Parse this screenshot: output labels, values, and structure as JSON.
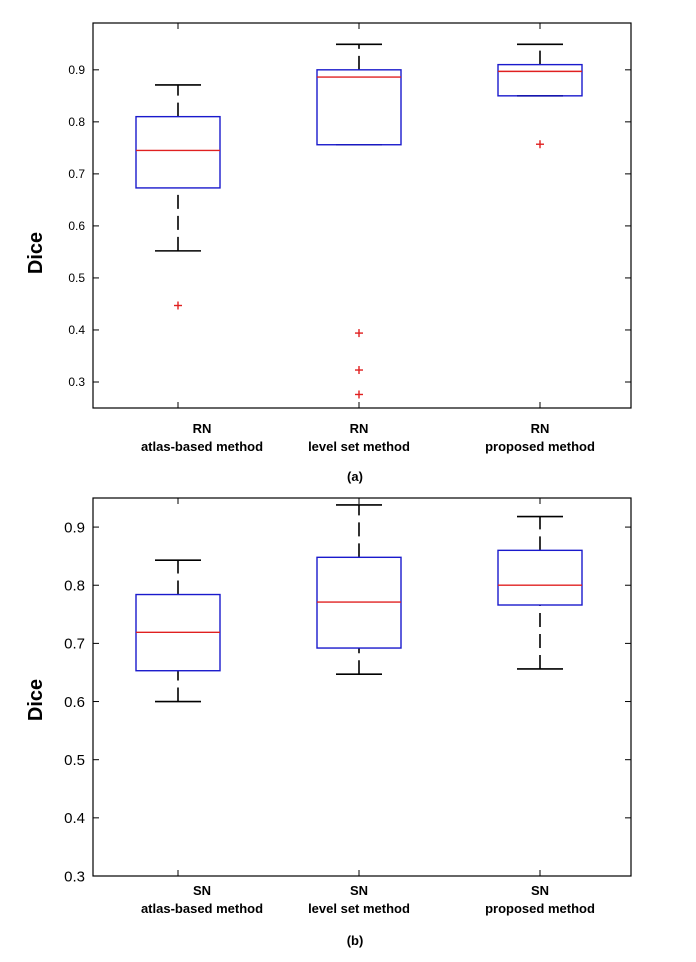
{
  "colors": {
    "box": "#1a1acc",
    "median": "#e02020",
    "whisker": "#000000",
    "outlier": "#e02020",
    "axis": "#000000"
  },
  "chart_data": [
    {
      "id": "a",
      "type": "boxplot",
      "panel_label": "(a)",
      "ylabel": "Dice",
      "ylim": [
        0.25,
        0.99
      ],
      "yticks": [
        0.3,
        0.4,
        0.5,
        0.6,
        0.7,
        0.8,
        0.9
      ],
      "ytick_labels": [
        "0.3",
        "0.4",
        "0.5",
        "0.6",
        "0.7",
        "0.8",
        "0.9"
      ],
      "grid": false,
      "categories": [
        {
          "line1": "RN",
          "line2": "atlas-based method"
        },
        {
          "line1": "RN",
          "line2": "level set method"
        },
        {
          "line1": "RN",
          "line2": "proposed method"
        }
      ],
      "boxes": [
        {
          "whisker_low": 0.552,
          "q1": 0.673,
          "median": 0.745,
          "q3": 0.81,
          "whisker_high": 0.871,
          "outliers": [
            0.447
          ]
        },
        {
          "whisker_low": 0.756,
          "q1": 0.756,
          "median": 0.886,
          "q3": 0.9,
          "whisker_high": 0.949,
          "outliers": [
            0.394,
            0.323,
            0.276
          ]
        },
        {
          "whisker_low": 0.85,
          "q1": 0.85,
          "median": 0.897,
          "q3": 0.91,
          "whisker_high": 0.949,
          "outliers": [
            0.757
          ]
        }
      ]
    },
    {
      "id": "b",
      "type": "boxplot",
      "panel_label": "(b)",
      "ylabel": "Dice",
      "ylim": [
        0.3,
        0.95
      ],
      "yticks": [
        0.3,
        0.4,
        0.5,
        0.6,
        0.7,
        0.8,
        0.9
      ],
      "ytick_labels": [
        "0.3",
        "0.4",
        "0.5",
        "0.6",
        "0.7",
        "0.8",
        "0.9"
      ],
      "grid": false,
      "categories": [
        {
          "line1": "SN",
          "line2": "atlas-based method"
        },
        {
          "line1": "SN",
          "line2": "level set method"
        },
        {
          "line1": "SN",
          "line2": "proposed method"
        }
      ],
      "boxes": [
        {
          "whisker_low": 0.6,
          "q1": 0.653,
          "median": 0.719,
          "q3": 0.784,
          "whisker_high": 0.843,
          "outliers": []
        },
        {
          "whisker_low": 0.647,
          "q1": 0.692,
          "median": 0.771,
          "q3": 0.848,
          "whisker_high": 0.938,
          "outliers": []
        },
        {
          "whisker_low": 0.656,
          "q1": 0.766,
          "median": 0.8,
          "q3": 0.86,
          "whisker_high": 0.918,
          "outliers": []
        }
      ]
    }
  ]
}
